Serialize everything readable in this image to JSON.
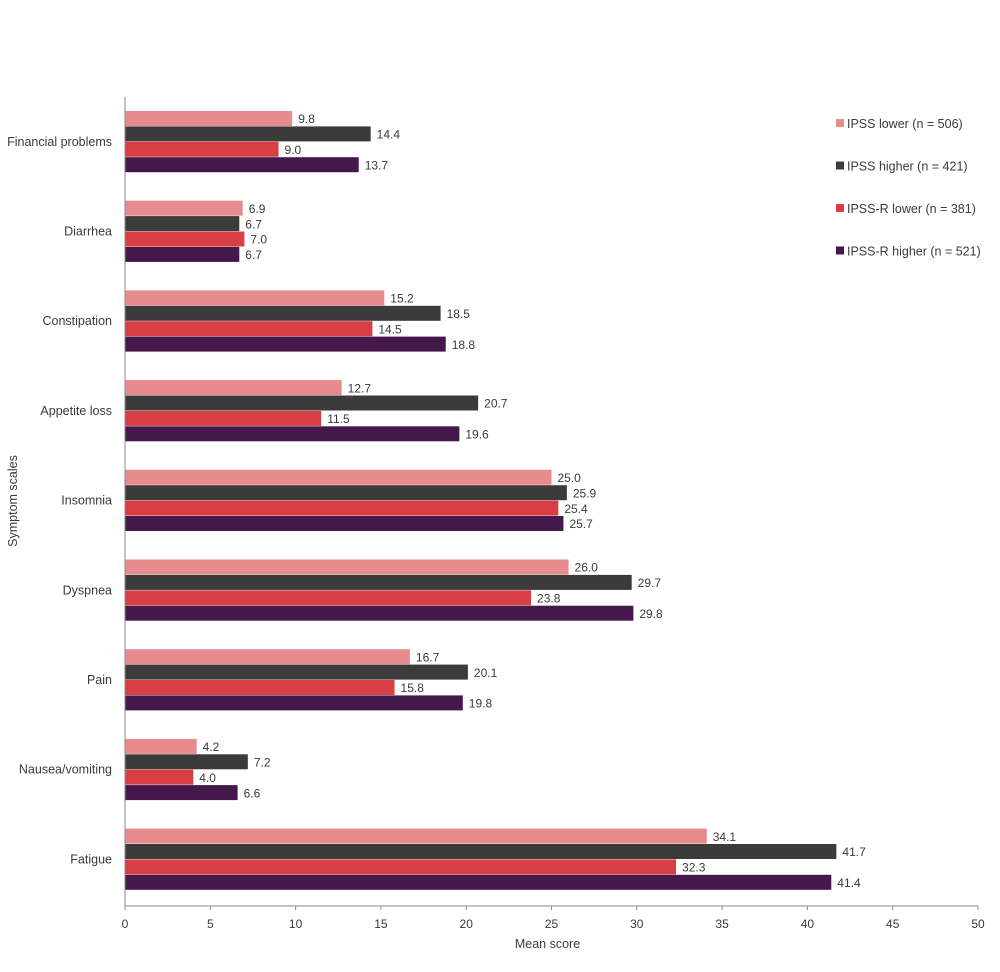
{
  "chart_data": {
    "type": "bar",
    "orientation": "horizontal",
    "title": "",
    "xlabel": "Mean score",
    "ylabel": "Symptom scales",
    "xlim": [
      0,
      50
    ],
    "xticks": [
      0,
      5,
      10,
      15,
      20,
      25,
      30,
      35,
      40,
      45,
      50
    ],
    "grid": false,
    "legend_position": "top-right",
    "categories": [
      "Financial problems",
      "Diarrhea",
      "Constipation",
      "Appetite loss",
      "Insomnia",
      "Dyspnea",
      "Pain",
      "Nausea/vomiting",
      "Fatigue"
    ],
    "series": [
      {
        "name": "IPSS lower (n = 506)",
        "color": "#e68b8e",
        "values": [
          9.8,
          6.9,
          15.2,
          12.7,
          25.0,
          26.0,
          16.7,
          4.2,
          34.1
        ]
      },
      {
        "name": "IPSS higher (n = 421)",
        "color": "#3b3b3b",
        "values": [
          14.4,
          6.7,
          18.5,
          20.7,
          25.9,
          29.7,
          20.1,
          7.2,
          41.7
        ]
      },
      {
        "name": "IPSS-R lower (n = 381)",
        "color": "#d83f45",
        "values": [
          9.0,
          7.0,
          14.5,
          11.5,
          25.4,
          23.8,
          15.8,
          4.0,
          32.3
        ]
      },
      {
        "name": "IPSS-R higher (n = 521)",
        "color": "#45184c",
        "values": [
          13.7,
          6.7,
          18.8,
          19.6,
          25.7,
          29.8,
          19.8,
          6.6,
          41.4
        ]
      }
    ],
    "value_labels": [
      [
        "9.8",
        "6.9",
        "15.2",
        "12.7",
        "25.0",
        "26.0",
        "16.7",
        "4.2",
        "34.1"
      ],
      [
        "14.4",
        "6.7",
        "18.5",
        "20.7",
        "25.9",
        "29.7",
        "20.1",
        "7.2",
        "41.7"
      ],
      [
        "9.0",
        "7.0",
        "14.5",
        "11.5",
        "25.4",
        "23.8",
        "15.8",
        "4.0",
        "32.3"
      ],
      [
        "13.7",
        "6.7",
        "18.8",
        "19.6",
        "25.7",
        "29.8",
        "19.8",
        "6.6",
        "41.4"
      ]
    ]
  }
}
